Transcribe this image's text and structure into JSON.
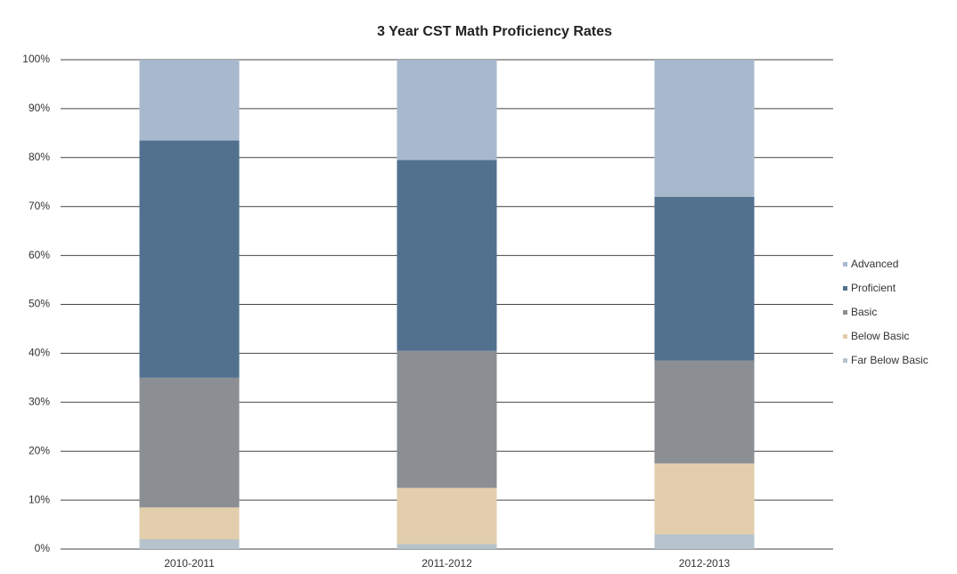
{
  "chart_data": {
    "type": "stacked_bar",
    "title": "3 Year CST Math Proficiency Rates",
    "categories": [
      "2010-2011",
      "2011-2012",
      "2012-2013"
    ],
    "series": [
      {
        "name": "Advanced",
        "color": "#a9b9cd",
        "values": [
          16.5,
          20.5,
          28
        ]
      },
      {
        "name": "Proficient",
        "color": "#52718f",
        "values": [
          48.5,
          39,
          33.5
        ]
      },
      {
        "name": "Basic",
        "color": "#8b8f94",
        "values": [
          26.5,
          28,
          21
        ]
      },
      {
        "name": "Below Basic",
        "color": "#e2ceac",
        "values": [
          6.5,
          11.5,
          14.5
        ]
      },
      {
        "name": "Far Below Basic",
        "color": "#b6c3cc",
        "values": [
          2,
          1,
          3
        ]
      }
    ],
    "ylim": [
      0,
      100
    ],
    "yticks": [
      {
        "value": 0,
        "label": "0%"
      },
      {
        "value": 10,
        "label": "10%"
      },
      {
        "value": 20,
        "label": "20%"
      },
      {
        "value": 30,
        "label": "30%"
      },
      {
        "value": 40,
        "label": "40%"
      },
      {
        "value": 50,
        "label": "50%"
      },
      {
        "value": 60,
        "label": "60%"
      },
      {
        "value": 70,
        "label": "70%"
      },
      {
        "value": 80,
        "label": "80%"
      },
      {
        "value": 90,
        "label": "90%"
      },
      {
        "value": 100,
        "label": "100%"
      }
    ],
    "grid": true,
    "legend": "right"
  }
}
